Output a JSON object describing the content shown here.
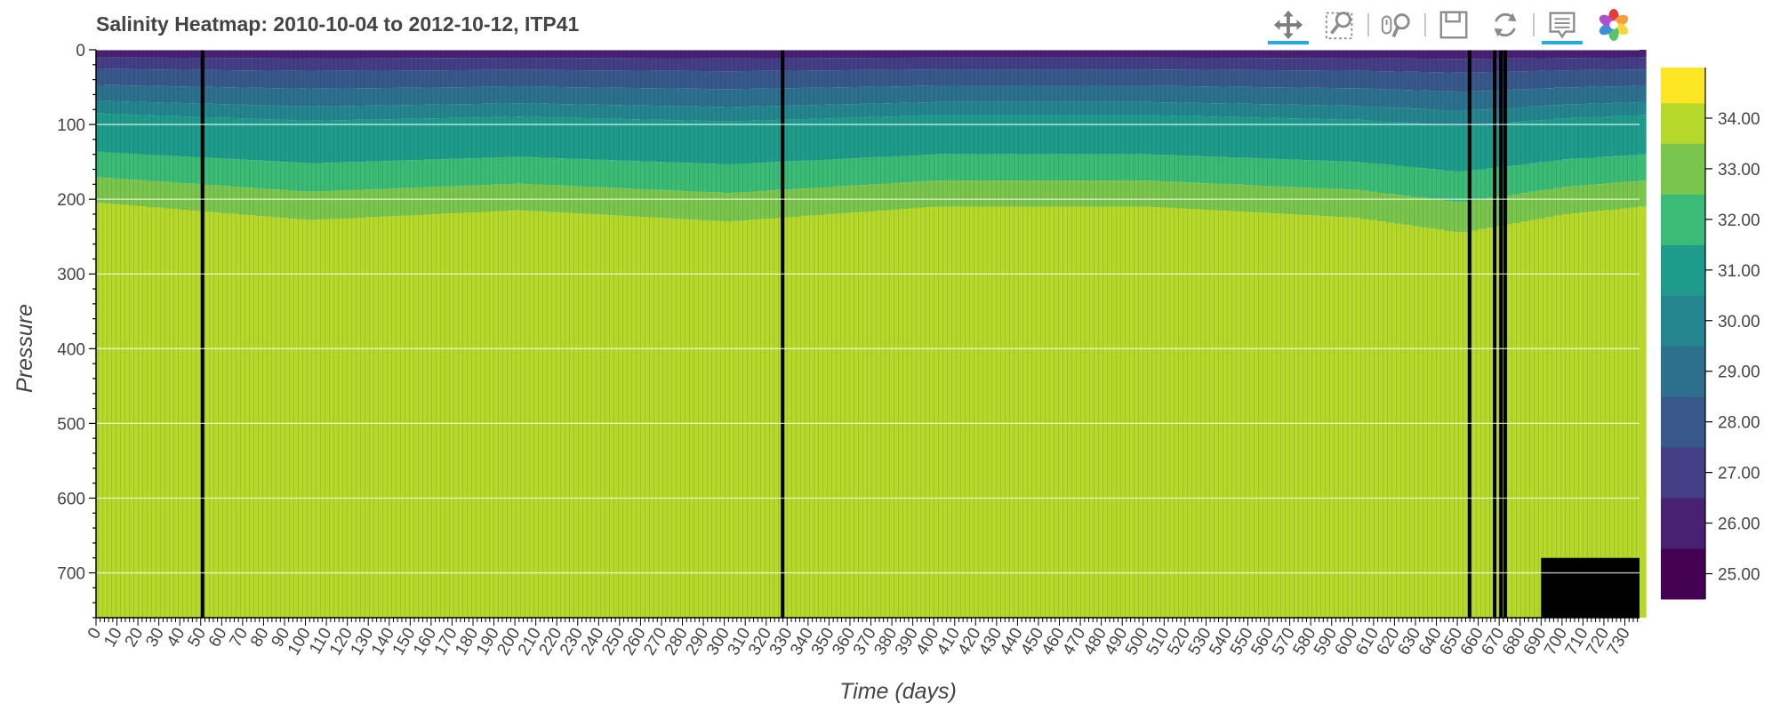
{
  "chart_data": {
    "type": "heatmap",
    "title": "Salinity Heatmap: 2010-10-04 to 2012-10-12, ITP41",
    "xlabel": "Time (days)",
    "ylabel": "Pressure",
    "xlim": [
      0,
      737
    ],
    "ylim": [
      760,
      0
    ],
    "x_ticks": [
      0,
      10,
      20,
      30,
      40,
      50,
      60,
      70,
      80,
      90,
      100,
      110,
      120,
      130,
      140,
      150,
      160,
      170,
      180,
      190,
      200,
      210,
      220,
      230,
      240,
      250,
      260,
      270,
      280,
      290,
      300,
      310,
      320,
      330,
      340,
      350,
      360,
      370,
      380,
      390,
      400,
      410,
      420,
      430,
      440,
      450,
      460,
      470,
      480,
      490,
      500,
      510,
      520,
      530,
      540,
      550,
      560,
      570,
      580,
      590,
      600,
      610,
      620,
      630,
      640,
      650,
      660,
      670,
      680,
      690,
      700,
      710,
      720,
      730
    ],
    "y_ticks": [
      0,
      100,
      200,
      300,
      400,
      500,
      600,
      700
    ],
    "grid": true,
    "colorbar": {
      "range": [
        24.5,
        35.0
      ],
      "bands": [
        {
          "min": 24.5,
          "max": 25.5,
          "color": "#440154"
        },
        {
          "min": 25.5,
          "max": 26.5,
          "color": "#482173"
        },
        {
          "min": 26.5,
          "max": 27.5,
          "color": "#433e85"
        },
        {
          "min": 27.5,
          "max": 28.5,
          "color": "#38588c"
        },
        {
          "min": 28.5,
          "max": 29.5,
          "color": "#2d708e"
        },
        {
          "min": 29.5,
          "max": 30.5,
          "color": "#25858e"
        },
        {
          "min": 30.5,
          "max": 31.5,
          "color": "#1e9b8a"
        },
        {
          "min": 31.5,
          "max": 32.5,
          "color": "#3bbb75"
        },
        {
          "min": 32.5,
          "max": 33.5,
          "color": "#7ac54e"
        },
        {
          "min": 33.5,
          "max": 34.3,
          "color": "#b5d82b"
        },
        {
          "min": 34.3,
          "max": 35.0,
          "color": "#fde725"
        }
      ],
      "ticks": [
        "25.00",
        "26.00",
        "27.00",
        "28.00",
        "29.00",
        "30.00",
        "31.00",
        "32.00",
        "33.00",
        "34.00"
      ]
    },
    "profile_pressure_levels": [
      0,
      12,
      30,
      55,
      80,
      100,
      160,
      200,
      240,
      760
    ],
    "salinity_by_level": [
      26.0,
      27.0,
      28.0,
      29.0,
      30.0,
      31.0,
      32.0,
      33.0,
      34.0,
      34.6
    ],
    "boundary_depths_vs_time": {
      "days": [
        0,
        100,
        200,
        300,
        400,
        500,
        600,
        650,
        700,
        737
      ],
      "s33_to_34_top": [
        205,
        228,
        215,
        230,
        210,
        210,
        225,
        245,
        220,
        210
      ]
    },
    "missing_data_columns_days": [
      50,
      327,
      655,
      667,
      670,
      672
    ],
    "missing_region": {
      "day_start": 690,
      "day_end": 737,
      "pressure_start": 680,
      "pressure_end": 760
    }
  },
  "toolbar": {
    "tools": [
      {
        "name": "pan-tool",
        "icon": "pan-icon",
        "active": true
      },
      {
        "name": "box-zoom-tool",
        "icon": "box-zoom-icon",
        "active": false
      },
      {
        "name": "wheel-zoom-tool",
        "icon": "wheel-zoom-icon",
        "active": false
      },
      {
        "name": "save-tool",
        "icon": "save-icon",
        "active": false
      },
      {
        "name": "reset-tool",
        "icon": "reset-icon",
        "active": false
      },
      {
        "name": "hover-tool",
        "icon": "hover-icon",
        "active": true
      },
      {
        "name": "bokeh-logo",
        "icon": "bokeh-logo-icon",
        "active": false
      }
    ]
  }
}
